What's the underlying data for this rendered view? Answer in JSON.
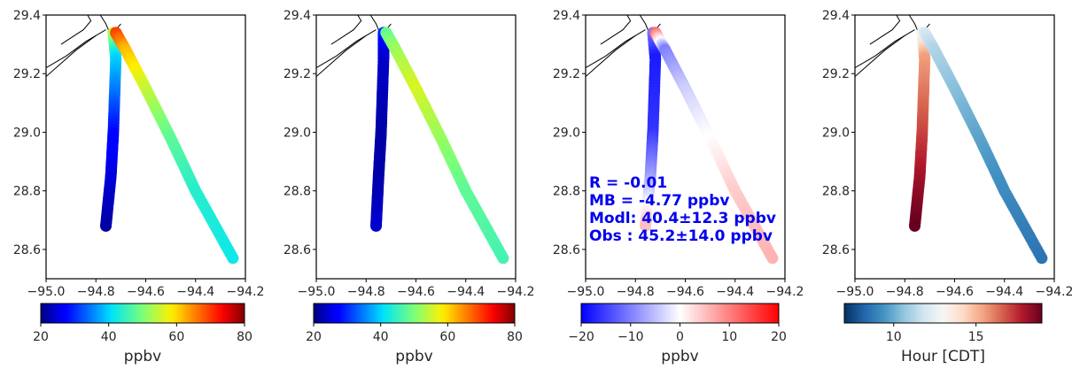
{
  "map_axes": {
    "x_ticks": [
      "−95.0",
      "−94.8",
      "−94.6",
      "−94.4",
      "−94.2"
    ],
    "x_tick_values": [
      -95.0,
      -94.8,
      -94.6,
      -94.4,
      -94.2
    ],
    "y_ticks": [
      "29.4",
      "29.2",
      "29.0",
      "28.8",
      "28.6"
    ],
    "y_tick_values": [
      29.4,
      29.2,
      29.0,
      28.8,
      28.6
    ],
    "lon_range": [
      -95.0,
      -94.2
    ],
    "lat_range": [
      28.5,
      29.4
    ]
  },
  "chart_data": [
    {
      "type": "scatter",
      "panel": "model",
      "colormap": "jet",
      "xlim": [
        -95.0,
        -94.2
      ],
      "ylim": [
        28.5,
        29.4
      ],
      "tracks": [
        {
          "lon": [
            -94.73,
            -94.72,
            -94.73,
            -94.74,
            -94.76
          ],
          "lat": [
            29.34,
            29.25,
            29.0,
            28.85,
            28.68
          ],
          "values": [
            55,
            40,
            28,
            25,
            22
          ]
        },
        {
          "lon": [
            -94.72,
            -94.68,
            -94.6,
            -94.5,
            -94.4,
            -94.25
          ],
          "lat": [
            29.34,
            29.28,
            29.15,
            28.98,
            28.8,
            28.57
          ],
          "values": [
            70,
            62,
            55,
            48,
            44,
            42
          ]
        }
      ],
      "colorbar": {
        "min": 20,
        "max": 80,
        "ticks": [
          "20",
          "40",
          "60",
          "80"
        ],
        "tick_values": [
          20,
          40,
          60,
          80
        ],
        "label": "ppbv"
      }
    },
    {
      "type": "scatter",
      "panel": "observed",
      "colormap": "jet",
      "xlim": [
        -95.0,
        -94.2
      ],
      "ylim": [
        28.5,
        29.4
      ],
      "tracks": [
        {
          "lon": [
            -94.73,
            -94.73,
            -94.74,
            -94.75,
            -94.76
          ],
          "lat": [
            29.34,
            29.25,
            29.0,
            28.85,
            28.68
          ],
          "values": [
            30,
            24,
            22,
            22,
            24
          ]
        },
        {
          "lon": [
            -94.72,
            -94.68,
            -94.6,
            -94.5,
            -94.4,
            -94.25
          ],
          "lat": [
            29.34,
            29.28,
            29.15,
            28.98,
            28.8,
            28.57
          ],
          "values": [
            48,
            52,
            56,
            52,
            48,
            46
          ]
        }
      ],
      "colorbar": {
        "min": 20,
        "max": 80,
        "ticks": [
          "20",
          "40",
          "60",
          "80"
        ],
        "tick_values": [
          20,
          40,
          60,
          80
        ],
        "label": "ppbv"
      }
    },
    {
      "type": "scatter",
      "panel": "difference",
      "colormap": "bwr",
      "xlim": [
        -95.0,
        -94.2
      ],
      "ylim": [
        28.5,
        29.4
      ],
      "tracks": [
        {
          "lon": [
            -94.73,
            -94.72,
            -94.73,
            -94.74,
            -94.76
          ],
          "lat": [
            29.34,
            29.25,
            29.0,
            28.85,
            28.68
          ],
          "values": [
            -10,
            -18,
            -16,
            -8,
            5
          ]
        },
        {
          "lon": [
            -94.72,
            -94.68,
            -94.6,
            -94.5,
            -94.4,
            -94.25
          ],
          "lat": [
            29.34,
            29.28,
            29.15,
            28.98,
            28.8,
            28.57
          ],
          "values": [
            12,
            -10,
            -4,
            0,
            4,
            6
          ]
        }
      ],
      "colorbar": {
        "min": -20,
        "max": 20,
        "ticks": [
          "−20",
          "−10",
          "0",
          "10",
          "20"
        ],
        "tick_values": [
          -20,
          -10,
          0,
          10,
          20
        ],
        "label": "ppbv"
      },
      "annotations": [
        "R = -0.01",
        "MB = -4.77 ppbv",
        "Modl: 40.4±12.3 ppbv",
        "Obs : 45.2±14.0 ppbv"
      ]
    },
    {
      "type": "scatter",
      "panel": "time",
      "colormap": "RdBu_r",
      "xlim": [
        -95.0,
        -94.2
      ],
      "ylim": [
        28.5,
        29.4
      ],
      "tracks": [
        {
          "lon": [
            -94.73,
            -94.72,
            -94.73,
            -94.74,
            -94.76
          ],
          "lat": [
            29.34,
            29.25,
            29.0,
            28.85,
            28.68
          ],
          "values": [
            12.5,
            15.5,
            17,
            18,
            19
          ]
        },
        {
          "lon": [
            -94.72,
            -94.68,
            -94.6,
            -94.5,
            -94.4,
            -94.25
          ],
          "lat": [
            29.34,
            29.28,
            29.15,
            28.98,
            28.8,
            28.57
          ],
          "values": [
            12,
            11.2,
            10.5,
            9.8,
            9.2,
            8.6
          ]
        }
      ],
      "colorbar": {
        "min": 7,
        "max": 19,
        "ticks": [
          "10",
          "15"
        ],
        "tick_values": [
          10,
          15
        ],
        "label": "Hour [CDT]"
      }
    }
  ]
}
